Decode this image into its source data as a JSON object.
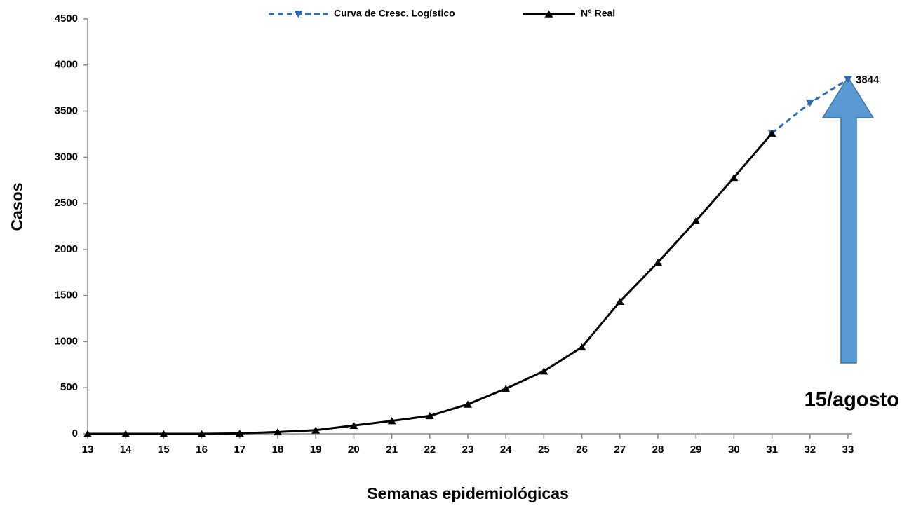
{
  "chart_data": {
    "type": "line",
    "x": [
      13,
      14,
      15,
      16,
      17,
      18,
      19,
      20,
      21,
      22,
      23,
      24,
      25,
      26,
      27,
      28,
      29,
      30,
      31,
      32,
      33
    ],
    "xlim": [
      13,
      33
    ],
    "xticks": [
      13,
      14,
      15,
      16,
      17,
      18,
      19,
      20,
      21,
      22,
      23,
      24,
      25,
      26,
      27,
      28,
      29,
      30,
      31,
      32,
      33
    ],
    "ylim": [
      0,
      4500
    ],
    "yticks": [
      0,
      500,
      1000,
      1500,
      2000,
      2500,
      3000,
      3500,
      4000,
      4500
    ],
    "xlabel": "Semanas epidemiológicas",
    "ylabel": "Casos",
    "series": [
      {
        "name": "Curva de Cresc. Logístico",
        "color": "#2e6db4",
        "line_style": "dashed",
        "marker": "triangle-down",
        "values": [
          null,
          null,
          null,
          null,
          null,
          null,
          null,
          null,
          null,
          null,
          null,
          null,
          null,
          null,
          null,
          null,
          null,
          null,
          3260,
          3590,
          3844
        ]
      },
      {
        "name": "N° Real",
        "color": "#000000",
        "line_style": "solid",
        "marker": "triangle-up",
        "values": [
          0,
          0,
          0,
          0,
          5,
          20,
          40,
          90,
          140,
          195,
          320,
          490,
          680,
          940,
          1435,
          1860,
          2310,
          2780,
          3260,
          null,
          null
        ]
      }
    ],
    "value_label_index": [
      20
    ],
    "annotation": "15/agosto"
  }
}
